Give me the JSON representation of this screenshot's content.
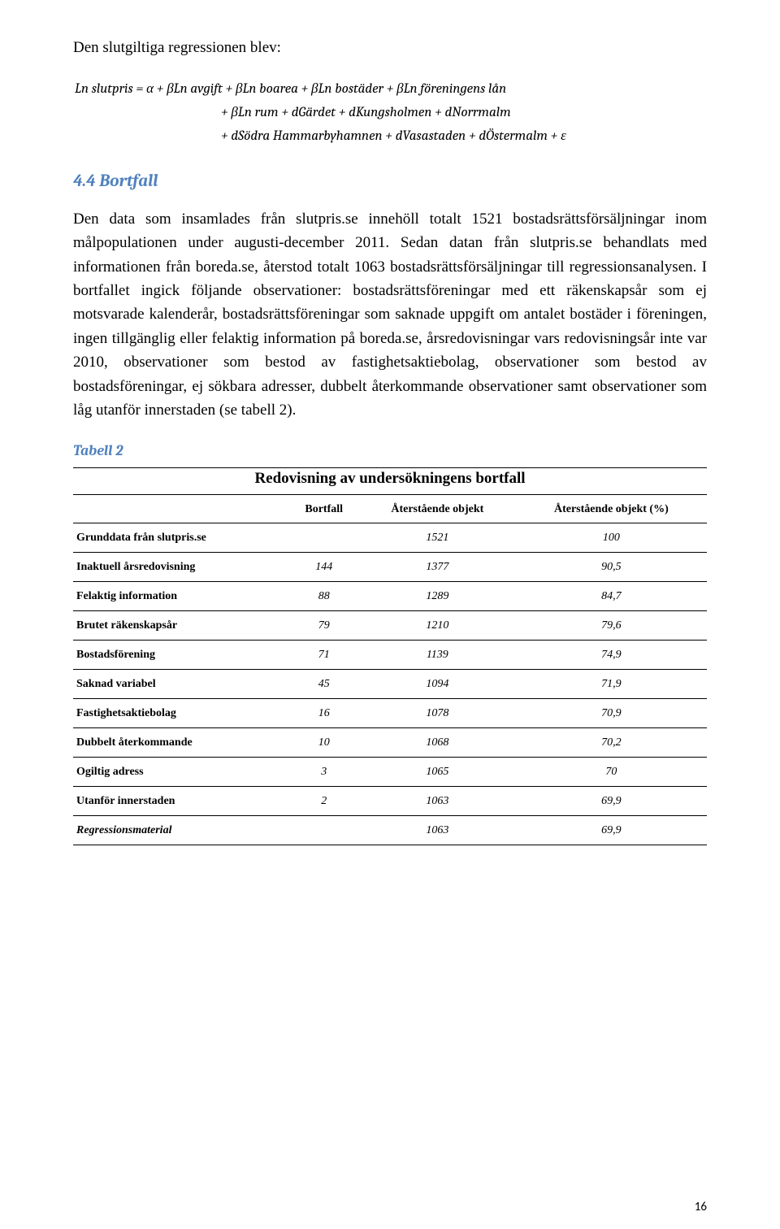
{
  "intro": "Den slutgiltiga regressionen blev:",
  "equation": {
    "line1": "Ln slutpris = α + βLn avgift + βLn boarea + βLn bostäder + βLn föreningens lån",
    "line2": "+ βLn rum + dGärdet + dKungsholmen + dNorrmalm",
    "line3": "+ dSödra Hammarbyhamnen + dVasastaden + dÖstermalm + ε"
  },
  "heading": "4.4 Bortfall",
  "body": "Den data som insamlades från slutpris.se innehöll totalt 1521 bostadsrättsförsäljningar inom målpopulationen under augusti-december 2011. Sedan datan från slutpris.se behandlats med informationen från boreda.se, återstod totalt 1063 bostadsrättsförsäljningar till regressionsanalysen. I bortfallet ingick följande observationer: bostadsrättsföreningar med ett räkenskapsår som ej motsvarade kalenderår, bostadsrättsföreningar som saknade uppgift om antalet bostäder i föreningen, ingen tillgänglig eller felaktig information på boreda.se, årsredovisningar vars redovisningsår inte var 2010, observationer som bestod av fastighetsaktiebolag, observationer som bestod av bostadsföreningar, ej sökbara adresser, dubbelt återkommande observationer samt observationer som låg utanför innerstaden (se tabell 2).",
  "tabell_label": "Tabell 2",
  "table": {
    "title": "Redovisning av undersökningens bortfall",
    "columns": [
      "",
      "Bortfall",
      "Återstående objekt",
      "Återstående objekt (%)"
    ],
    "rows": [
      [
        "Grunddata från slutpris.se",
        "",
        "1521",
        "100"
      ],
      [
        "Inaktuell årsredovisning",
        "144",
        "1377",
        "90,5"
      ],
      [
        "Felaktig information",
        "88",
        "1289",
        "84,7"
      ],
      [
        "Brutet räkenskapsår",
        "79",
        "1210",
        "79,6"
      ],
      [
        "Bostadsförening",
        "71",
        "1139",
        "74,9"
      ],
      [
        "Saknad variabel",
        "45",
        "1094",
        "71,9"
      ],
      [
        "Fastighetsaktiebolag",
        "16",
        "1078",
        "70,9"
      ],
      [
        "Dubbelt återkommande",
        "10",
        "1068",
        "70,2"
      ],
      [
        "Ogiltig adress",
        "3",
        "1065",
        "70"
      ],
      [
        "Utanför innerstaden",
        "2",
        "1063",
        "69,9"
      ],
      [
        "Regressionsmaterial",
        "",
        "1063",
        "69,9"
      ]
    ]
  },
  "page_number": "16"
}
